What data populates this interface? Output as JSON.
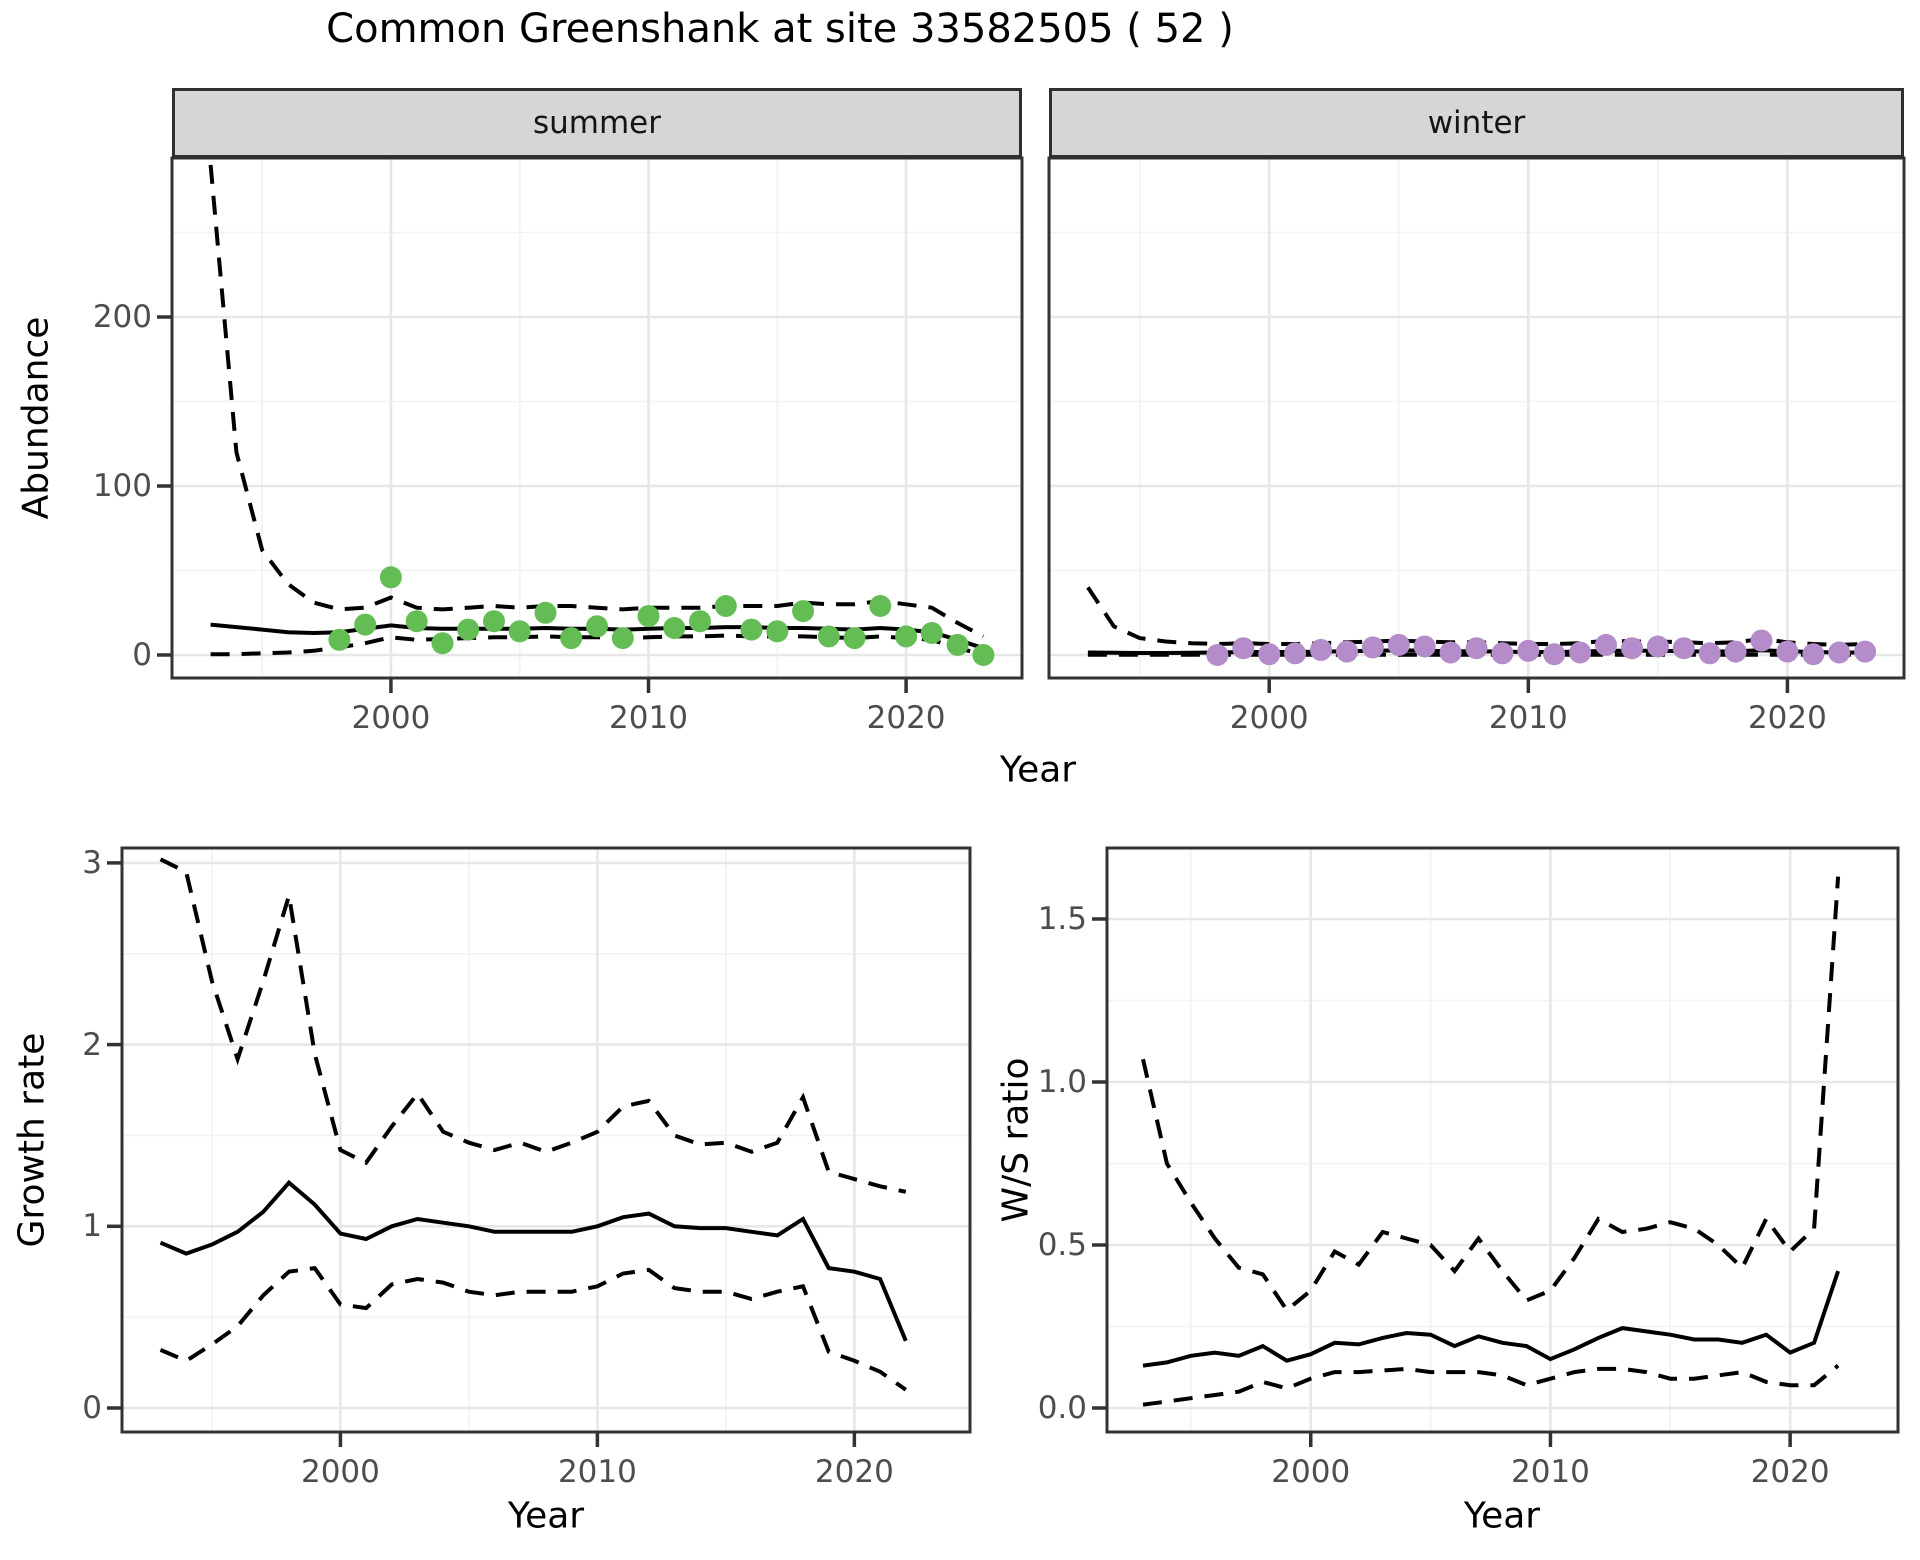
{
  "title": "Common Greenshank at site 33582505 ( 52 )",
  "colors": {
    "summer_point": "#64bd54",
    "winter_point": "#b38cc9",
    "line": "#000000",
    "grid_major": "#e7e7e7",
    "grid_minor": "#f2f2f2",
    "panel_border": "#333333",
    "strip_fill": "#d6d6d6",
    "axis_text": "#4d4d4d",
    "tick": "#333333"
  },
  "chart_data": [
    {
      "type": "line",
      "title": "Abundance by season (faceted: summer / winter)",
      "xlabel": "Year",
      "ylabel": "Abundance",
      "xlim": [
        1991.5,
        2024.5
      ],
      "ylim": [
        -14,
        294
      ],
      "grid": true,
      "legend": "none",
      "xticks": [
        2000,
        2010,
        2020
      ],
      "xticks_minor": [
        1995,
        2005,
        2015
      ],
      "yticks": [
        0,
        100,
        200
      ],
      "ytick_labels": [
        "0",
        "100",
        "200"
      ],
      "yticks_minor": [
        50,
        150,
        250
      ],
      "years": [
        1993,
        1994,
        1995,
        1996,
        1997,
        1998,
        1999,
        2000,
        2001,
        2002,
        2003,
        2004,
        2005,
        2006,
        2007,
        2008,
        2009,
        2010,
        2011,
        2012,
        2013,
        2014,
        2015,
        2016,
        2017,
        2018,
        2019,
        2020,
        2021,
        2022,
        2023
      ],
      "facets": [
        {
          "name": "summer",
          "point_color": "#64bd54",
          "series": [
            {
              "name": "median",
              "style": "solid",
              "values": [
                18,
                16.5,
                15,
                13.5,
                13,
                13.5,
                15.5,
                17.5,
                16,
                15.5,
                15.5,
                15.5,
                15.5,
                16,
                15.5,
                15.5,
                15,
                15.5,
                16,
                16,
                16.5,
                16.5,
                16,
                16,
                15.5,
                15,
                16,
                15,
                13.5,
                9,
                4
              ]
            },
            {
              "name": "upper_ci",
              "style": "dashed",
              "values": [
                290,
                120,
                62,
                42,
                31,
                27,
                28,
                34,
                28,
                27,
                28,
                29,
                28,
                29,
                29,
                28,
                27,
                28,
                28,
                28,
                29,
                29,
                29,
                31,
                30,
                30,
                32,
                30,
                28,
                19,
                11
              ]
            },
            {
              "name": "lower_ci",
              "style": "dashed",
              "values": [
                0.5,
                0.5,
                1,
                1.5,
                2.5,
                4.5,
                7,
                10.5,
                9,
                9.5,
                10,
                10.5,
                10.5,
                11,
                10.5,
                10.5,
                10,
                10.5,
                11,
                11,
                11.5,
                11,
                11,
                11,
                10.5,
                10,
                11,
                10,
                9,
                4,
                0.5
              ]
            }
          ],
          "points": {
            "years": [
              1998,
              1999,
              2000,
              2001,
              2002,
              2003,
              2004,
              2005,
              2006,
              2007,
              2008,
              2009,
              2010,
              2011,
              2012,
              2013,
              2014,
              2015,
              2016,
              2017,
              2018,
              2019,
              2020,
              2021,
              2022,
              2023
            ],
            "values": [
              9,
              18,
              46,
              20,
              7,
              15,
              20,
              14,
              25,
              10,
              17,
              10,
              23,
              16,
              20,
              29,
              15,
              14,
              26,
              11,
              10,
              29,
              11,
              13,
              6,
              0
            ]
          }
        },
        {
          "name": "winter",
          "point_color": "#b38cc9",
          "series": [
            {
              "name": "median",
              "style": "solid",
              "values": [
                1.5,
                1.3,
                1.2,
                1.2,
                1.3,
                1.5,
                1.8,
                1.8,
                1.8,
                2,
                2.2,
                2.5,
                2.8,
                2.5,
                2.2,
                2.2,
                2,
                1.8,
                1.8,
                2,
                2.5,
                2.5,
                2.5,
                2.2,
                2,
                2.2,
                2.8,
                2.2,
                1.8,
                1.5,
                1.5
              ]
            },
            {
              "name": "upper_ci",
              "style": "dashed",
              "values": [
                40,
                17,
                10,
                8,
                7,
                6.5,
                7,
                6.5,
                6.5,
                7,
                7.5,
                8,
                8.5,
                8,
                7.5,
                7.5,
                7,
                6.5,
                6.5,
                7,
                8.5,
                8,
                8,
                7.5,
                7,
                7.5,
                9.5,
                7.5,
                6.5,
                6,
                6.5
              ]
            },
            {
              "name": "lower_ci",
              "style": "dashed",
              "values": [
                0.2,
                0.2,
                0.2,
                0.2,
                0.2,
                0.2,
                0.2,
                0.2,
                0.2,
                0.2,
                0.2,
                0.2,
                0.2,
                0.2,
                0.2,
                0.2,
                0.2,
                0.2,
                0.2,
                0.2,
                0.2,
                0.2,
                0.2,
                0.2,
                0.2,
                0.2,
                0.2,
                0.2,
                0.2,
                0.2,
                0.2
              ]
            }
          ],
          "points": {
            "years": [
              1998,
              1999,
              2000,
              2001,
              2002,
              2003,
              2004,
              2005,
              2006,
              2007,
              2008,
              2009,
              2010,
              2011,
              2012,
              2013,
              2014,
              2015,
              2016,
              2017,
              2018,
              2019,
              2020,
              2021,
              2022,
              2023
            ],
            "values": [
              0,
              4,
              0.5,
              1,
              3,
              2,
              4.5,
              6,
              5,
              1.5,
              4,
              1,
              2.5,
              0.5,
              1.5,
              6,
              4,
              5,
              4,
              1,
              2,
              8.5,
              2,
              0.5,
              1.5,
              2
            ]
          }
        }
      ]
    },
    {
      "type": "line",
      "title": "Growth rate",
      "xlabel": "Year",
      "ylabel": "Growth rate",
      "xlim": [
        1991.5,
        2024.5
      ],
      "ylim": [
        -0.13,
        3.08
      ],
      "grid": true,
      "legend": "none",
      "xticks": [
        2000,
        2010,
        2020
      ],
      "xticks_minor": [
        1995,
        2005,
        2015
      ],
      "yticks": [
        0,
        1,
        2,
        3
      ],
      "ytick_labels": [
        "0",
        "1",
        "2",
        "3"
      ],
      "yticks_minor": [
        0.5,
        1.5,
        2.5
      ],
      "years": [
        1993,
        1994,
        1995,
        1996,
        1997,
        1998,
        1999,
        2000,
        2001,
        2002,
        2003,
        2004,
        2005,
        2006,
        2007,
        2008,
        2009,
        2010,
        2011,
        2012,
        2013,
        2014,
        2015,
        2016,
        2017,
        2018,
        2019,
        2020,
        2021,
        2022
      ],
      "series": [
        {
          "name": "median",
          "style": "solid",
          "values": [
            0.91,
            0.85,
            0.9,
            0.97,
            1.08,
            1.24,
            1.12,
            0.96,
            0.93,
            1.0,
            1.04,
            1.02,
            1.0,
            0.97,
            0.97,
            0.97,
            0.97,
            1.0,
            1.05,
            1.07,
            1.0,
            0.99,
            0.99,
            0.97,
            0.95,
            1.04,
            0.77,
            0.75,
            0.71,
            0.37
          ]
        },
        {
          "name": "upper_ci",
          "style": "dashed",
          "values": [
            3.02,
            2.95,
            2.35,
            1.92,
            2.35,
            2.82,
            1.95,
            1.42,
            1.35,
            1.55,
            1.73,
            1.52,
            1.46,
            1.42,
            1.46,
            1.41,
            1.46,
            1.52,
            1.66,
            1.69,
            1.5,
            1.45,
            1.46,
            1.41,
            1.46,
            1.71,
            1.3,
            1.26,
            1.22,
            1.19
          ]
        },
        {
          "name": "lower_ci",
          "style": "dashed",
          "values": [
            0.32,
            0.26,
            0.35,
            0.45,
            0.62,
            0.75,
            0.77,
            0.57,
            0.55,
            0.68,
            0.71,
            0.69,
            0.64,
            0.62,
            0.64,
            0.64,
            0.64,
            0.67,
            0.74,
            0.76,
            0.66,
            0.64,
            0.64,
            0.6,
            0.64,
            0.67,
            0.31,
            0.26,
            0.2,
            0.1
          ]
        }
      ]
    },
    {
      "type": "line",
      "title": "W/S ratio",
      "xlabel": "Year",
      "ylabel": "W/S ratio",
      "xlim": [
        1991.5,
        2024.5
      ],
      "ylim": [
        -0.075,
        1.72
      ],
      "grid": true,
      "legend": "none",
      "xticks": [
        2000,
        2010,
        2020
      ],
      "xticks_minor": [
        1995,
        2005,
        2015
      ],
      "yticks": [
        0,
        0.5,
        1,
        1.5
      ],
      "ytick_labels": [
        "0.0",
        "0.5",
        "1.0",
        "1.5"
      ],
      "yticks_minor": [
        0.25,
        0.75,
        1.25
      ],
      "years": [
        1993,
        1994,
        1995,
        1996,
        1997,
        1998,
        1999,
        2000,
        2001,
        2002,
        2003,
        2004,
        2005,
        2006,
        2007,
        2008,
        2009,
        2010,
        2011,
        2012,
        2013,
        2014,
        2015,
        2016,
        2017,
        2018,
        2019,
        2020,
        2021,
        2022
      ],
      "series": [
        {
          "name": "median",
          "style": "solid",
          "values": [
            0.13,
            0.14,
            0.16,
            0.17,
            0.16,
            0.19,
            0.145,
            0.165,
            0.2,
            0.195,
            0.215,
            0.23,
            0.225,
            0.19,
            0.22,
            0.2,
            0.19,
            0.15,
            0.18,
            0.215,
            0.245,
            0.235,
            0.225,
            0.21,
            0.21,
            0.2,
            0.225,
            0.17,
            0.2,
            0.42
          ]
        },
        {
          "name": "upper_ci",
          "style": "dashed",
          "values": [
            1.07,
            0.75,
            0.63,
            0.52,
            0.43,
            0.41,
            0.3,
            0.36,
            0.48,
            0.44,
            0.54,
            0.52,
            0.5,
            0.42,
            0.52,
            0.42,
            0.33,
            0.36,
            0.46,
            0.58,
            0.54,
            0.55,
            0.57,
            0.55,
            0.5,
            0.43,
            0.58,
            0.48,
            0.55,
            1.63
          ]
        },
        {
          "name": "lower_ci",
          "style": "dashed",
          "values": [
            0.01,
            0.02,
            0.03,
            0.04,
            0.05,
            0.08,
            0.06,
            0.09,
            0.11,
            0.11,
            0.115,
            0.12,
            0.11,
            0.11,
            0.11,
            0.1,
            0.07,
            0.09,
            0.11,
            0.12,
            0.12,
            0.11,
            0.09,
            0.09,
            0.1,
            0.11,
            0.08,
            0.07,
            0.07,
            0.13
          ]
        }
      ]
    }
  ]
}
